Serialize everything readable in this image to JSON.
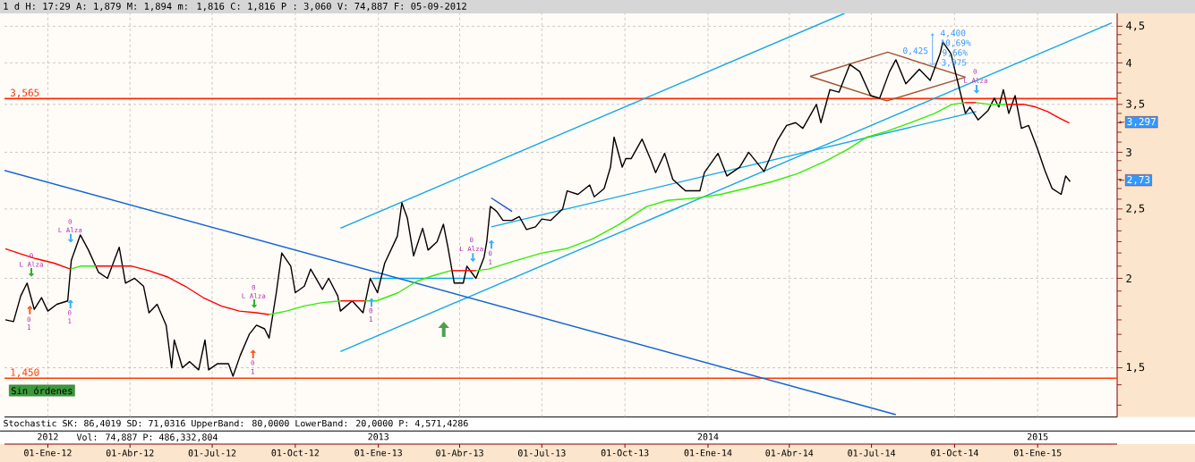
{
  "chart_data": {
    "type": "line",
    "title": "1 d H: 17:29 A: 1,879 M: 1,894 m: 1,816 C: 1,816 P : 3,060 V: 74,887 F: 05-09-2012",
    "log": "y",
    "grid": true,
    "xlim": [
      "2011-11-14",
      "2015-03-30"
    ],
    "ylim": [
      1.28,
      4.69
    ],
    "xticks": [
      {
        "value": "2012-01-01",
        "label": "01-Ene-12"
      },
      {
        "value": "2012-04-01",
        "label": "01-Abr-12"
      },
      {
        "value": "2012-07-01",
        "label": "01-Jul-12"
      },
      {
        "value": "2012-10-01",
        "label": "01-Oct-12"
      },
      {
        "value": "2013-01-01",
        "label": "01-Ene-13"
      },
      {
        "value": "2013-04-01",
        "label": "01-Abr-13"
      },
      {
        "value": "2013-07-01",
        "label": "01-Jul-13"
      },
      {
        "value": "2013-10-01",
        "label": "01-Oct-13"
      },
      {
        "value": "2014-01-01",
        "label": "01-Ene-14"
      },
      {
        "value": "2014-04-01",
        "label": "01-Abr-14"
      },
      {
        "value": "2014-07-01",
        "label": "01-Jul-14"
      },
      {
        "value": "2014-10-01",
        "label": "01-Oct-14"
      },
      {
        "value": "2015-01-01",
        "label": "01-Ene-15"
      }
    ],
    "x2lim": [
      "2011-11-14",
      "2015-03-30"
    ],
    "x2ticks": [
      {
        "value": "2012-01-01",
        "label": "2012"
      },
      {
        "value": "2013-01-01",
        "label": "2013"
      },
      {
        "value": "2014-01-01",
        "label": "2014"
      },
      {
        "value": "2015-01-01",
        "label": "2015"
      }
    ],
    "yticks": [
      {
        "value": 1.33,
        "label": null
      },
      {
        "value": 1.42,
        "label": null
      },
      {
        "value": 1.5,
        "label": "1,5"
      },
      {
        "value": 1.58,
        "label": null
      },
      {
        "value": 1.67,
        "label": null
      },
      {
        "value": 1.75,
        "label": null
      },
      {
        "value": 1.83,
        "label": null
      },
      {
        "value": 1.92,
        "label": null
      },
      2,
      {
        "value": 2.08,
        "label": null
      },
      {
        "value": 2.17,
        "label": null
      },
      {
        "value": 2.25,
        "label": null
      },
      {
        "value": 2.33,
        "label": null
      },
      {
        "value": 2.42,
        "label": null
      },
      {
        "value": 2.5,
        "label": "2,5"
      },
      {
        "value": 2.58,
        "label": null
      },
      {
        "value": 2.67,
        "label": null
      },
      {
        "value": 2.75,
        "label": null
      },
      {
        "value": 2.83,
        "label": null
      },
      {
        "value": 2.92,
        "label": null
      },
      3,
      {
        "value": 3.1,
        "label": null
      },
      {
        "value": 3.2,
        "label": null
      },
      {
        "value": 3.3,
        "label": null
      },
      {
        "value": 3.4,
        "label": null
      },
      {
        "value": 3.5,
        "label": "3,5"
      },
      {
        "value": 3.63,
        "label": null
      },
      {
        "value": 3.75,
        "label": null
      },
      {
        "value": 3.88,
        "label": null
      },
      4,
      {
        "value": 4.13,
        "label": null
      },
      {
        "value": 4.25,
        "label": null
      },
      {
        "value": 4.38,
        "label": null
      },
      {
        "value": 4.5,
        "label": "4,5"
      }
    ],
    "ref_lines": [
      {
        "axis": "y",
        "value": 3.565,
        "label": "3,565",
        "color": "#ff2a00"
      },
      {
        "axis": "y",
        "value": 1.45,
        "label": "1,450",
        "color": "#ff3c00"
      }
    ],
    "series": [
      {
        "color": "#10a8e8",
        "x": [
          "2012-11-20",
          "2015-03-24"
        ],
        "values": [
          1.58,
          4.55
        ]
      },
      {
        "color": "#10a8e8",
        "x": [
          "2012-11-20",
          "2014-06-01"
        ],
        "values": [
          2.35,
          4.69
        ]
      },
      {
        "color": "#10a8e8",
        "x": [
          "2013-05-06",
          "2014-10-25"
        ],
        "values": [
          2.36,
          3.42
        ]
      },
      {
        "color": "#10a8e8",
        "x": [
          "2012-12-25",
          "2013-04-16"
        ],
        "values": [
          2.0,
          2.0
        ]
      },
      {
        "color": "#2050d0",
        "x": [
          "2013-05-06",
          "2013-05-29"
        ],
        "values": [
          2.59,
          2.48
        ]
      },
      {
        "color": "#1064d0",
        "x": [
          "2011-11-14",
          "2014-07-28"
        ],
        "values": [
          2.83,
          1.29
        ]
      },
      {
        "color": "#a0522d",
        "x": [
          "2014-04-24",
          "2014-07-19",
          "2014-10-13"
        ],
        "values": [
          3.83,
          4.14,
          3.82
        ]
      },
      {
        "color": "#a0522d",
        "x": [
          "2014-04-24",
          "2014-07-18",
          "2014-10-13"
        ],
        "values": [
          3.83,
          3.54,
          3.82
        ]
      },
      {
        "color": "#000000",
        "x": [
          "2011-11-15",
          "2011-11-24",
          "2011-12-02",
          "2011-12-09",
          "2011-12-17",
          "2011-12-25",
          "2012-01-01",
          "2012-01-11",
          "2012-01-23",
          "2012-01-27",
          "2012-02-06",
          "2012-02-15",
          "2012-02-26",
          "2012-03-07",
          "2012-03-20",
          "2012-03-27",
          "2012-04-06",
          "2012-04-16",
          "2012-04-22",
          "2012-05-01",
          "2012-05-11",
          "2012-05-17",
          "2012-05-20",
          "2012-05-29",
          "2012-06-06",
          "2012-06-16",
          "2012-06-23",
          "2012-06-27",
          "2012-07-07",
          "2012-07-19",
          "2012-07-24",
          "2012-08-01",
          "2012-08-11",
          "2012-08-19",
          "2012-08-28",
          "2012-09-02",
          "2012-09-10",
          "2012-09-16",
          "2012-09-26",
          "2012-10-01",
          "2012-10-11",
          "2012-10-18",
          "2012-10-31",
          "2012-11-07",
          "2012-11-17",
          "2012-11-20",
          "2012-12-03",
          "2012-12-15",
          "2012-12-23",
          "2012-12-31",
          "2013-01-08",
          "2013-01-22",
          "2013-01-27",
          "2013-02-02",
          "2013-02-09",
          "2013-02-19",
          "2013-02-25",
          "2013-03-07",
          "2013-03-14",
          "2013-03-19",
          "2013-03-26",
          "2013-04-05",
          "2013-04-09",
          "2013-04-19",
          "2013-04-28",
          "2013-05-01",
          "2013-05-05",
          "2013-05-12",
          "2013-05-19",
          "2013-05-29",
          "2013-06-06",
          "2013-06-14",
          "2013-06-24",
          "2013-07-01",
          "2013-07-11",
          "2013-07-24",
          "2013-07-29",
          "2013-08-10",
          "2013-08-23",
          "2013-08-28",
          "2013-09-08",
          "2013-09-15",
          "2013-09-19",
          "2013-09-28",
          "2013-10-02",
          "2013-10-08",
          "2013-10-20",
          "2013-10-30",
          "2013-11-04",
          "2013-11-14",
          "2013-11-23",
          "2013-12-07",
          "2013-12-23",
          "2013-12-28",
          "2014-01-12",
          "2014-01-22",
          "2014-02-05",
          "2014-02-15",
          "2014-03-04",
          "2014-03-19",
          "2014-03-29",
          "2014-04-08",
          "2014-04-16",
          "2014-05-01",
          "2014-05-06",
          "2014-05-16",
          "2014-05-26",
          "2014-06-07",
          "2014-06-18",
          "2014-06-30",
          "2014-07-10",
          "2014-07-21",
          "2014-07-28",
          "2014-08-08",
          "2014-08-23",
          "2014-09-04",
          "2014-09-15",
          "2014-09-18",
          "2014-09-27",
          "2014-10-05",
          "2014-10-13",
          "2014-10-18",
          "2014-10-27",
          "2014-11-07",
          "2014-11-14",
          "2014-11-19",
          "2014-11-24",
          "2014-11-30",
          "2014-12-07",
          "2014-12-14",
          "2014-12-22",
          "2015-01-01",
          "2015-01-09",
          "2015-01-17",
          "2015-01-27",
          "2015-02-01",
          "2015-02-06"
        ],
        "values": [
          1.75,
          1.74,
          1.89,
          1.97,
          1.81,
          1.88,
          1.8,
          1.84,
          1.86,
          2.12,
          2.3,
          2.19,
          2.04,
          2.0,
          2.21,
          1.97,
          2.0,
          1.95,
          1.79,
          1.84,
          1.72,
          1.5,
          1.64,
          1.5,
          1.53,
          1.49,
          1.64,
          1.49,
          1.52,
          1.52,
          1.46,
          1.56,
          1.67,
          1.72,
          1.7,
          1.65,
          1.91,
          2.17,
          2.08,
          1.91,
          1.95,
          2.06,
          1.93,
          2.0,
          1.89,
          1.8,
          1.86,
          1.79,
          2.0,
          1.91,
          2.1,
          2.29,
          2.55,
          2.43,
          2.15,
          2.35,
          2.19,
          2.25,
          2.38,
          2.21,
          1.97,
          1.97,
          2.08,
          2.0,
          2.14,
          2.25,
          2.52,
          2.48,
          2.41,
          2.41,
          2.44,
          2.34,
          2.36,
          2.42,
          2.41,
          2.5,
          2.65,
          2.62,
          2.7,
          2.6,
          2.67,
          2.86,
          3.15,
          2.86,
          2.94,
          2.94,
          3.13,
          2.92,
          2.81,
          2.99,
          2.75,
          2.65,
          2.65,
          2.81,
          2.99,
          2.78,
          2.86,
          3.0,
          2.82,
          3.12,
          3.27,
          3.3,
          3.24,
          3.5,
          3.3,
          3.67,
          3.64,
          3.98,
          3.89,
          3.6,
          3.57,
          3.89,
          4.04,
          3.74,
          3.92,
          3.78,
          4.12,
          4.28,
          4.12,
          3.74,
          3.4,
          3.47,
          3.33,
          3.43,
          3.57,
          3.47,
          3.67,
          3.4,
          3.6,
          3.24,
          3.27,
          3.03,
          2.83,
          2.67,
          2.62,
          2.78,
          2.73
        ]
      },
      {
        "color": "#33ee00",
        "x": [
          "2012-01-26",
          "2012-02-06",
          "2012-02-23"
        ],
        "values": [
          2.06,
          2.08,
          2.08
        ]
      },
      {
        "color": "#33ee00",
        "x": [
          "2012-09-02",
          "2012-09-21",
          "2012-10-11",
          "2012-10-31",
          "2012-11-20"
        ],
        "values": [
          1.78,
          1.8,
          1.83,
          1.85,
          1.86
        ]
      },
      {
        "color": "#33ee00",
        "x": [
          "2012-12-17",
          "2012-12-30",
          "2013-01-23",
          "2013-02-12",
          "2013-03-04",
          "2013-03-22"
        ],
        "values": [
          1.86,
          1.86,
          1.91,
          1.98,
          2.02,
          2.05
        ]
      },
      {
        "color": "#33ee00",
        "x": [
          "2013-04-19",
          "2013-05-03",
          "2013-05-29",
          "2013-07-01",
          "2013-07-28",
          "2013-08-26",
          "2013-09-25",
          "2013-10-25",
          "2013-11-17",
          "2013-12-20",
          "2014-01-15",
          "2014-02-11",
          "2014-03-13",
          "2014-04-10",
          "2014-05-12",
          "2014-06-05",
          "2014-06-26",
          "2014-07-18",
          "2014-08-13",
          "2014-09-09",
          "2014-09-28",
          "2014-10-12"
        ],
        "values": [
          2.05,
          2.06,
          2.11,
          2.17,
          2.2,
          2.27,
          2.38,
          2.52,
          2.57,
          2.59,
          2.62,
          2.67,
          2.73,
          2.8,
          2.92,
          3.03,
          3.15,
          3.21,
          3.3,
          3.4,
          3.5,
          3.52
        ]
      },
      {
        "color": "#33ee00",
        "x": [
          "2014-10-25",
          "2014-11-10",
          "2014-11-27"
        ],
        "values": [
          3.52,
          3.5,
          3.5
        ]
      },
      {
        "color": "#ff0000",
        "x": [
          "2011-11-15",
          "2011-11-29",
          "2011-12-19",
          "2012-01-08",
          "2012-01-26"
        ],
        "values": [
          2.2,
          2.17,
          2.13,
          2.1,
          2.06
        ]
      },
      {
        "color": "#ff0000",
        "x": [
          "2012-02-23",
          "2012-03-20",
          "2012-04-03",
          "2012-04-22",
          "2012-05-12",
          "2012-06-01",
          "2012-06-21",
          "2012-07-11",
          "2012-07-31",
          "2012-08-19",
          "2012-09-02"
        ],
        "values": [
          2.08,
          2.08,
          2.08,
          2.05,
          2.01,
          1.95,
          1.88,
          1.83,
          1.8,
          1.79,
          1.78
        ]
      },
      {
        "color": "#ff0000",
        "x": [
          "2012-11-20",
          "2012-12-17"
        ],
        "values": [
          1.86,
          1.86
        ]
      },
      {
        "color": "#ff0000",
        "x": [
          "2013-03-22",
          "2013-04-19"
        ],
        "values": [
          2.05,
          2.05
        ]
      },
      {
        "color": "#ff0000",
        "x": [
          "2014-10-12",
          "2014-10-25"
        ],
        "values": [
          3.52,
          3.52
        ]
      },
      {
        "color": "#ff0000",
        "x": [
          "2014-11-27",
          "2014-12-17",
          "2014-12-30",
          "2015-01-12",
          "2015-01-25",
          "2015-02-05"
        ],
        "values": [
          3.5,
          3.5,
          3.47,
          3.42,
          3.35,
          3.297
        ]
      }
    ],
    "annotations": [
      "4,400",
      "10,69%",
      "9,66%",
      "3,975",
      "0,425",
      "0",
      "L Alza",
      "0",
      "1",
      "0",
      "L Alza",
      "0",
      "1",
      "0",
      "L Alza",
      "0",
      "1",
      "0",
      "1",
      "0",
      "L Alza",
      "0",
      "1",
      "0",
      "L Alza",
      "3,297",
      "2,73",
      "Sin órdenes",
      "Stochastic SK: 86,4019 SD: 71,0316 UpperBand: 80,0000 LowerBand: 20,0000 P: 4,571,4286",
      "Vol: 74,887 P: 486,332,804"
    ]
  }
}
